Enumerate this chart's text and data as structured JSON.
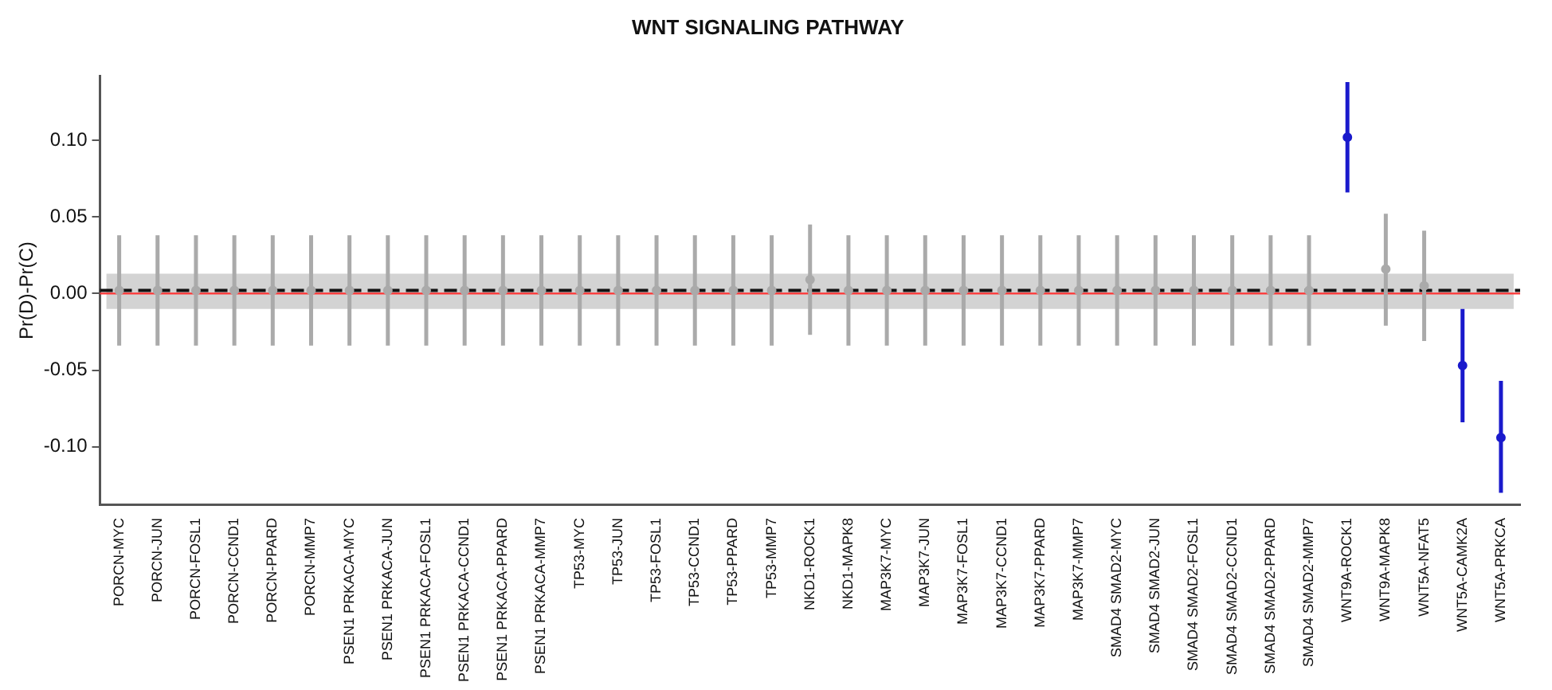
{
  "chart_data": {
    "type": "scatter",
    "title": "WNT SIGNALING PATHWAY",
    "ylabel": "Pr(D)-Pr(C)",
    "categories": [
      "PORCN-MYC",
      "PORCN-JUN",
      "PORCN-FOSL1",
      "PORCN-CCND1",
      "PORCN-PPARD",
      "PORCN-MMP7",
      "PSEN1 PRKACA-MYC",
      "PSEN1 PRKACA-JUN",
      "PSEN1 PRKACA-FOSL1",
      "PSEN1 PRKACA-CCND1",
      "PSEN1 PRKACA-PPARD",
      "PSEN1 PRKACA-MMP7",
      "TP53-MYC",
      "TP53-JUN",
      "TP53-FOSL1",
      "TP53-CCND1",
      "TP53-PPARD",
      "TP53-MMP7",
      "NKD1-ROCK1",
      "NKD1-MAPK8",
      "MAP3K7-MYC",
      "MAP3K7-JUN",
      "MAP3K7-FOSL1",
      "MAP3K7-CCND1",
      "MAP3K7-PPARD",
      "MAP3K7-MMP7",
      "SMAD4 SMAD2-MYC",
      "SMAD4 SMAD2-JUN",
      "SMAD4 SMAD2-FOSL1",
      "SMAD4 SMAD2-CCND1",
      "SMAD4 SMAD2-PPARD",
      "SMAD4 SMAD2-MMP7",
      "WNT9A-ROCK1",
      "WNT9A-MAPK8",
      "WNT5A-NFAT5",
      "WNT5A-CAMK2A",
      "WNT5A-PRKCA"
    ],
    "values": [
      0.002,
      0.002,
      0.002,
      0.002,
      0.002,
      0.002,
      0.002,
      0.002,
      0.002,
      0.002,
      0.002,
      0.002,
      0.002,
      0.002,
      0.002,
      0.002,
      0.002,
      0.002,
      0.009,
      0.002,
      0.002,
      0.002,
      0.002,
      0.002,
      0.002,
      0.002,
      0.002,
      0.002,
      0.002,
      0.002,
      0.002,
      0.002,
      0.102,
      0.016,
      0.005,
      -0.047,
      -0.094
    ],
    "errors": [
      [
        -0.034,
        0.038
      ],
      [
        -0.034,
        0.038
      ],
      [
        -0.034,
        0.038
      ],
      [
        -0.034,
        0.038
      ],
      [
        -0.034,
        0.038
      ],
      [
        -0.034,
        0.038
      ],
      [
        -0.034,
        0.038
      ],
      [
        -0.034,
        0.038
      ],
      [
        -0.034,
        0.038
      ],
      [
        -0.034,
        0.038
      ],
      [
        -0.034,
        0.038
      ],
      [
        -0.034,
        0.038
      ],
      [
        -0.034,
        0.038
      ],
      [
        -0.034,
        0.038
      ],
      [
        -0.034,
        0.038
      ],
      [
        -0.034,
        0.038
      ],
      [
        -0.034,
        0.038
      ],
      [
        -0.034,
        0.038
      ],
      [
        -0.027,
        0.045
      ],
      [
        -0.034,
        0.038
      ],
      [
        -0.034,
        0.038
      ],
      [
        -0.034,
        0.038
      ],
      [
        -0.034,
        0.038
      ],
      [
        -0.034,
        0.038
      ],
      [
        -0.034,
        0.038
      ],
      [
        -0.034,
        0.038
      ],
      [
        -0.034,
        0.038
      ],
      [
        -0.034,
        0.038
      ],
      [
        -0.034,
        0.038
      ],
      [
        -0.034,
        0.038
      ],
      [
        -0.034,
        0.038
      ],
      [
        -0.034,
        0.038
      ],
      [
        0.066,
        0.138
      ],
      [
        -0.021,
        0.052
      ],
      [
        -0.031,
        0.041
      ],
      [
        -0.084,
        -0.01
      ],
      [
        -0.13,
        -0.057
      ]
    ],
    "colors": [
      "#aaaaaa",
      "#aaaaaa",
      "#aaaaaa",
      "#aaaaaa",
      "#aaaaaa",
      "#aaaaaa",
      "#aaaaaa",
      "#aaaaaa",
      "#aaaaaa",
      "#aaaaaa",
      "#aaaaaa",
      "#aaaaaa",
      "#aaaaaa",
      "#aaaaaa",
      "#aaaaaa",
      "#aaaaaa",
      "#aaaaaa",
      "#aaaaaa",
      "#aaaaaa",
      "#aaaaaa",
      "#aaaaaa",
      "#aaaaaa",
      "#aaaaaa",
      "#aaaaaa",
      "#aaaaaa",
      "#aaaaaa",
      "#aaaaaa",
      "#aaaaaa",
      "#aaaaaa",
      "#aaaaaa",
      "#aaaaaa",
      "#aaaaaa",
      "#1a1acc",
      "#aaaaaa",
      "#aaaaaa",
      "#1a1acc",
      "#1a1acc"
    ],
    "ylim": [
      -0.138,
      0.142
    ],
    "yticks": [
      {
        "value": -0.1,
        "label": "-0.10"
      },
      {
        "value": -0.05,
        "label": "-0.05"
      },
      {
        "value": 0,
        "label": "0.00"
      },
      {
        "value": 0.05,
        "label": "0.05"
      },
      {
        "value": 0.1,
        "label": "0.10"
      }
    ],
    "bands": [
      {
        "axis": "y",
        "from": -0.01,
        "to": 0.013,
        "color": "#d3d3d3"
      }
    ],
    "ref_lines": [
      {
        "axis": "y",
        "value": 0,
        "color": "#ff3333",
        "line_style": "solid"
      },
      {
        "axis": "y",
        "value": 0.002,
        "color": "#111111",
        "line_style": "dashed"
      }
    ],
    "marker": "circle",
    "grid": false,
    "legend": false
  }
}
